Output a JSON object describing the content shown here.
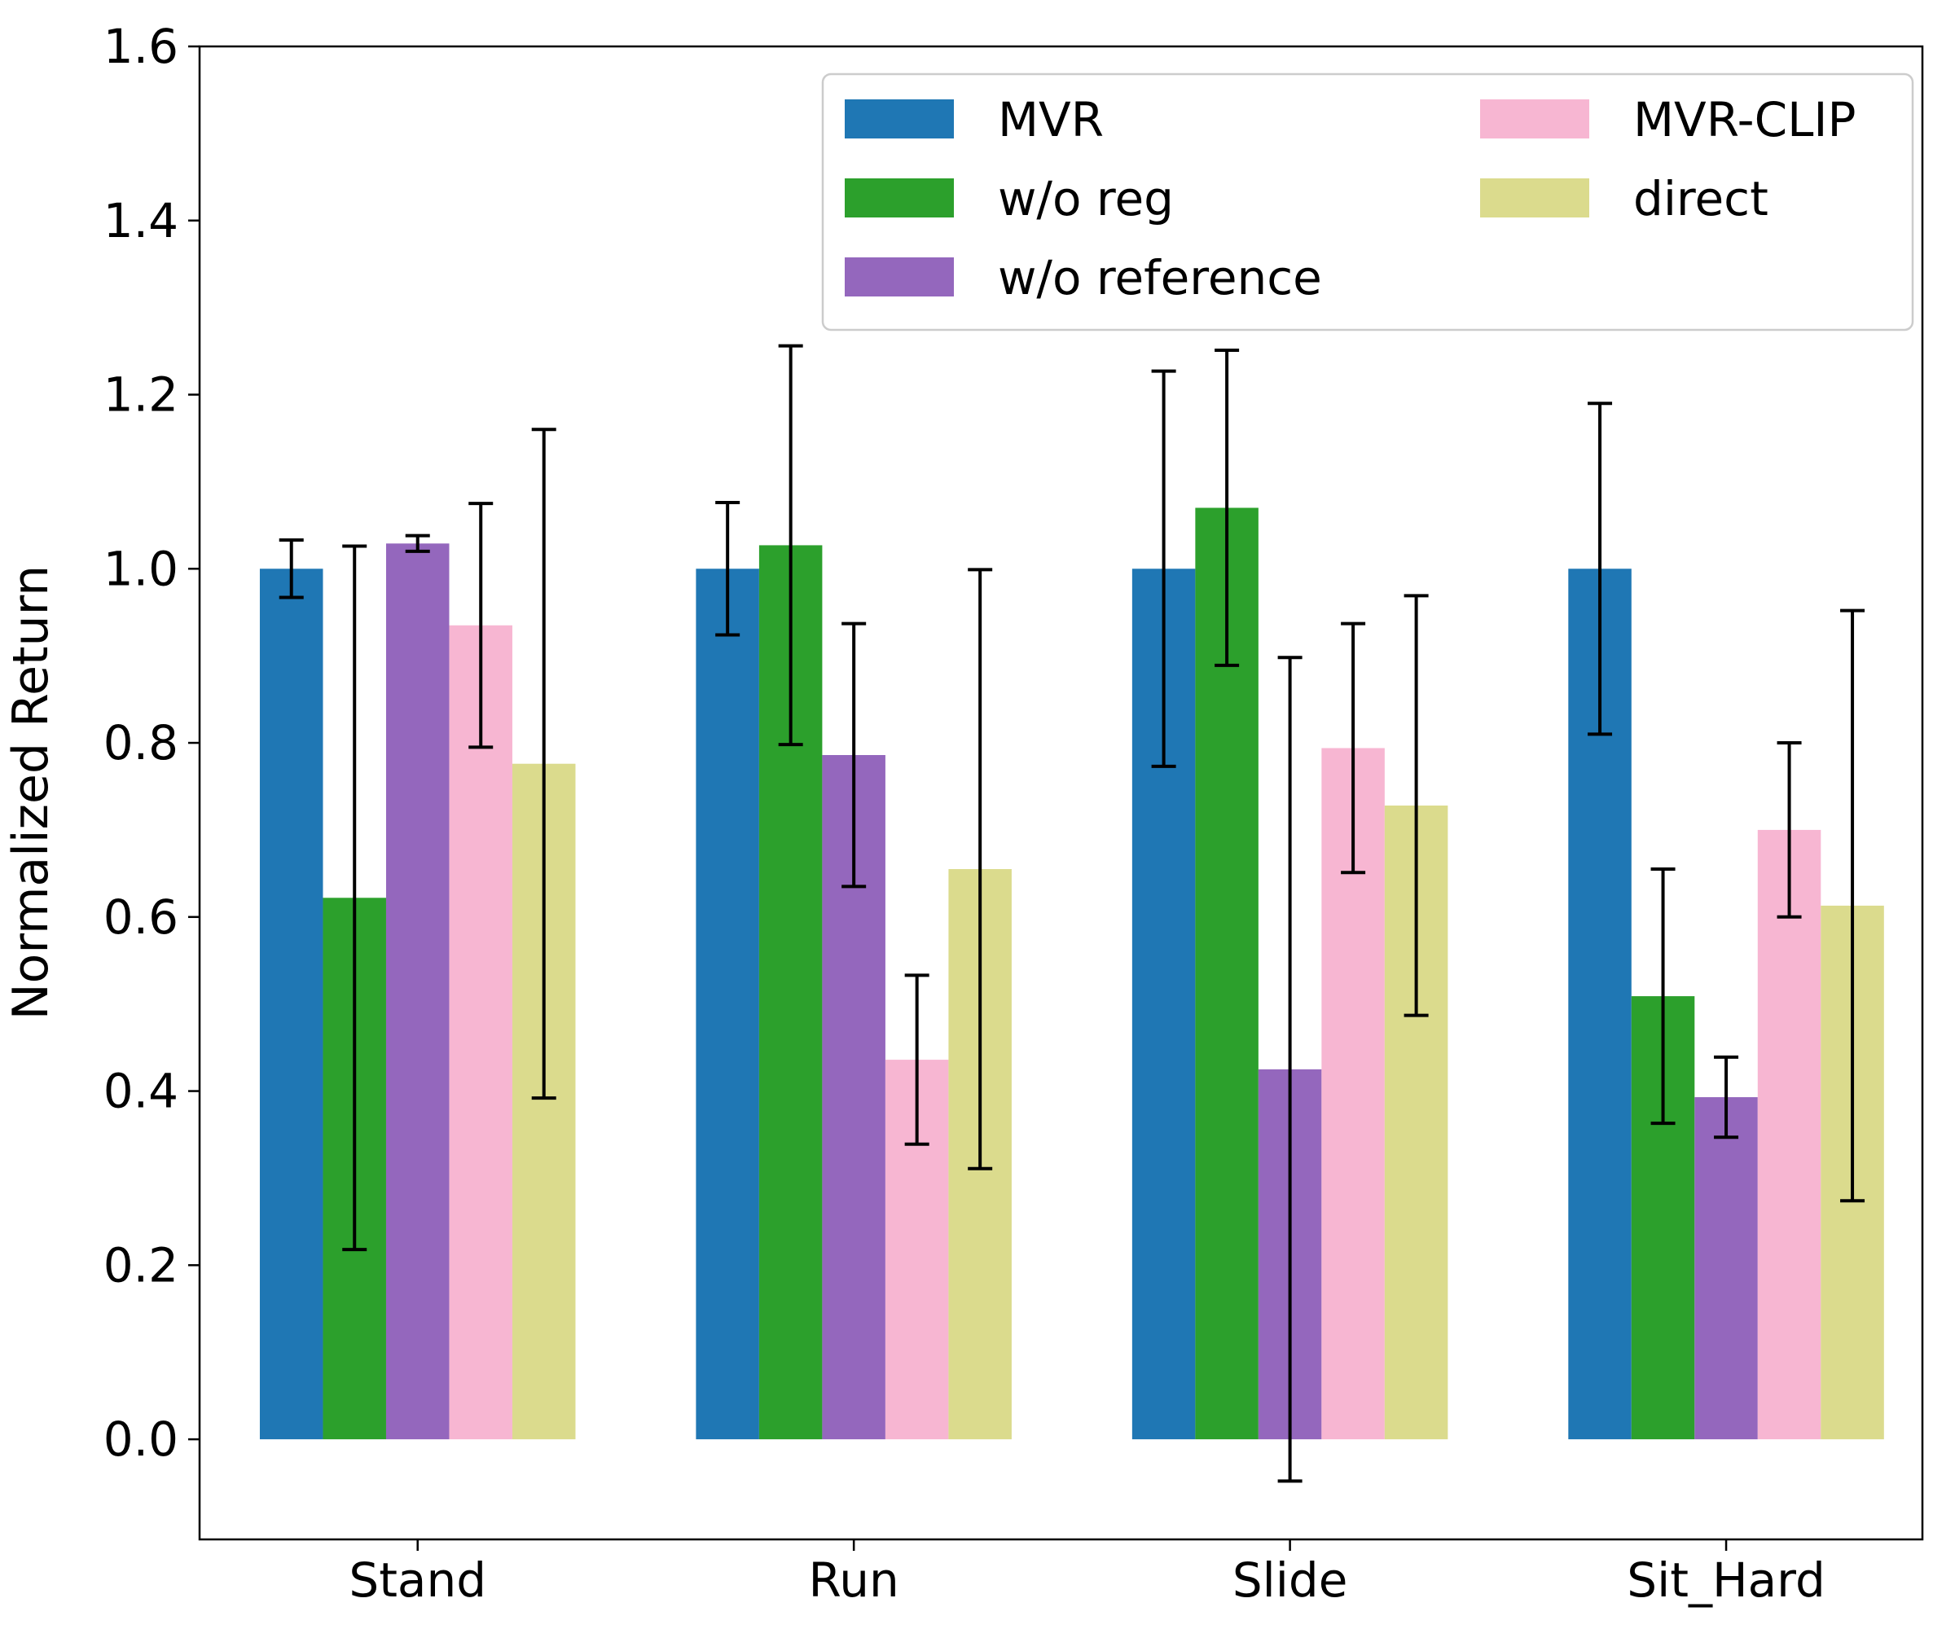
{
  "chart_data": {
    "type": "bar",
    "title": "",
    "xlabel": "",
    "ylabel": "Normalized Return",
    "ylim": [
      -0.115,
      1.6
    ],
    "yticks": [
      "0.0",
      "0.2",
      "0.4",
      "0.6",
      "0.8",
      "1.0",
      "1.2",
      "1.4",
      "1.6"
    ],
    "categories": [
      "Stand",
      "Run",
      "Slide",
      "Sit_Hard"
    ],
    "grid": false,
    "legend_position": "top-right",
    "series": [
      {
        "name": "MVR",
        "color": "#1f77b4",
        "values": [
          1.0,
          1.0,
          1.0,
          1.0
        ],
        "errors": [
          0.033,
          0.076,
          0.227,
          0.19
        ]
      },
      {
        "name": "w/o reg",
        "color": "#2ca02c",
        "values": [
          0.622,
          1.027,
          1.07,
          0.509
        ],
        "errors": [
          0.404,
          0.229,
          0.181,
          0.146
        ]
      },
      {
        "name": "w/o reference",
        "color": "#9467bd",
        "values": [
          1.029,
          0.786,
          0.425,
          0.393
        ],
        "errors": [
          0.009,
          0.151,
          0.473,
          0.046
        ]
      },
      {
        "name": "MVR-CLIP",
        "color": "#f7b6d2",
        "values": [
          0.935,
          0.436,
          0.794,
          0.7
        ],
        "errors": [
          0.14,
          0.097,
          0.143,
          0.1
        ]
      },
      {
        "name": "direct",
        "color": "#dbdb8d",
        "values": [
          0.776,
          0.655,
          0.728,
          0.613
        ],
        "errors": [
          0.384,
          0.344,
          0.241,
          0.339
        ]
      }
    ]
  }
}
